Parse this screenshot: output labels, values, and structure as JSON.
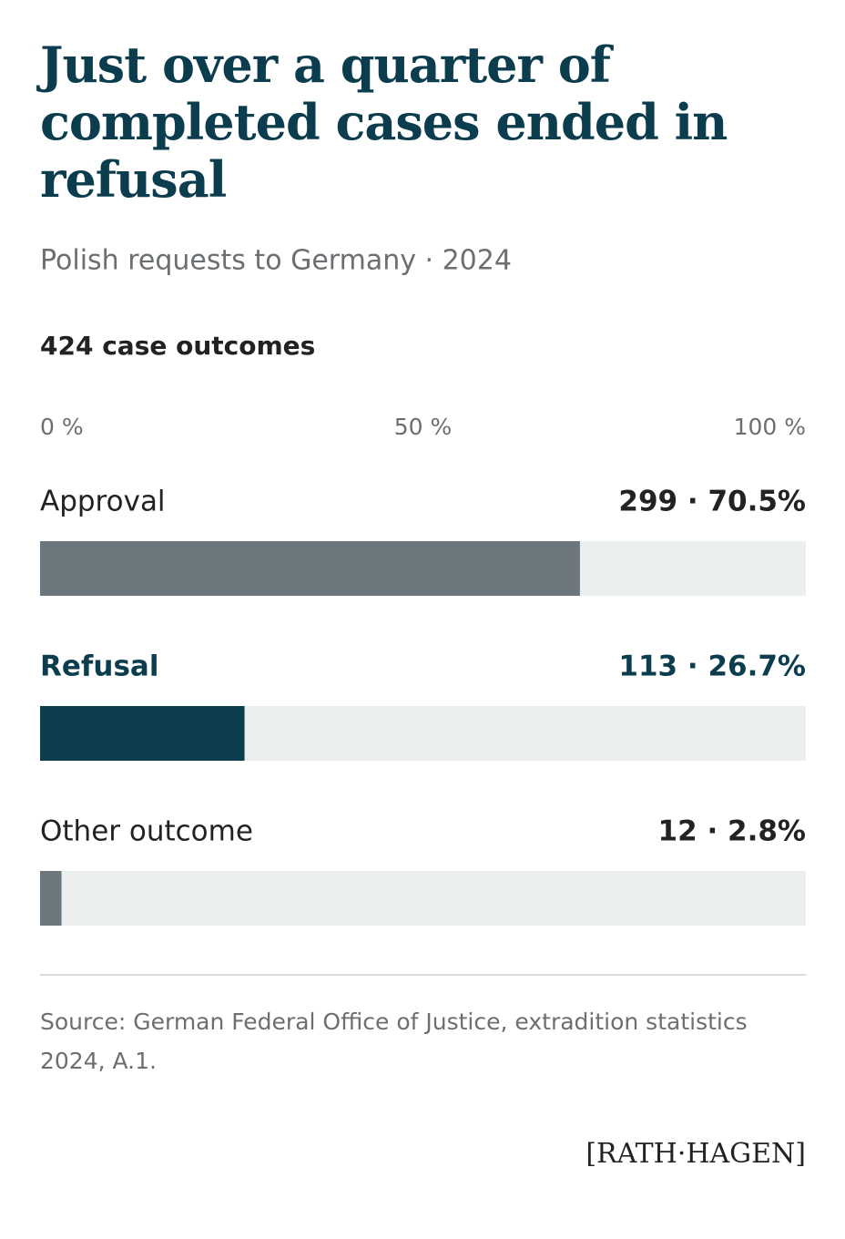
{
  "chart_data": {
    "type": "bar",
    "orientation": "horizontal",
    "title": "Just over a quarter of completed cases ended in refusal",
    "subtitle": "Polish requests to Germany · 2024",
    "note": "424 case outcomes",
    "categories": [
      "Approval",
      "Refusal",
      "Other outcome"
    ],
    "values": [
      70.5,
      26.7,
      2.8
    ],
    "value_labels": [
      "299 · 70.5%",
      "113 · 26.7%",
      "12 · 2.8%"
    ],
    "colors": [
      "#6b777d",
      "#0b3d4f",
      "#6b777d"
    ],
    "label_colors": [
      "#222222",
      "#0b3d4f",
      "#222222"
    ],
    "track_color": "#eceff0",
    "xlim": [
      0,
      100
    ],
    "xticks": [
      {
        "value": 0,
        "label": "0 %"
      },
      {
        "value": 50,
        "label": "50 %"
      },
      {
        "value": 100,
        "label": "100 %"
      }
    ],
    "grid": false,
    "source": "Source: German Federal Office of Justice, extradition statistics 2024, A.1.",
    "brand": "[RATH·HAGEN]"
  }
}
